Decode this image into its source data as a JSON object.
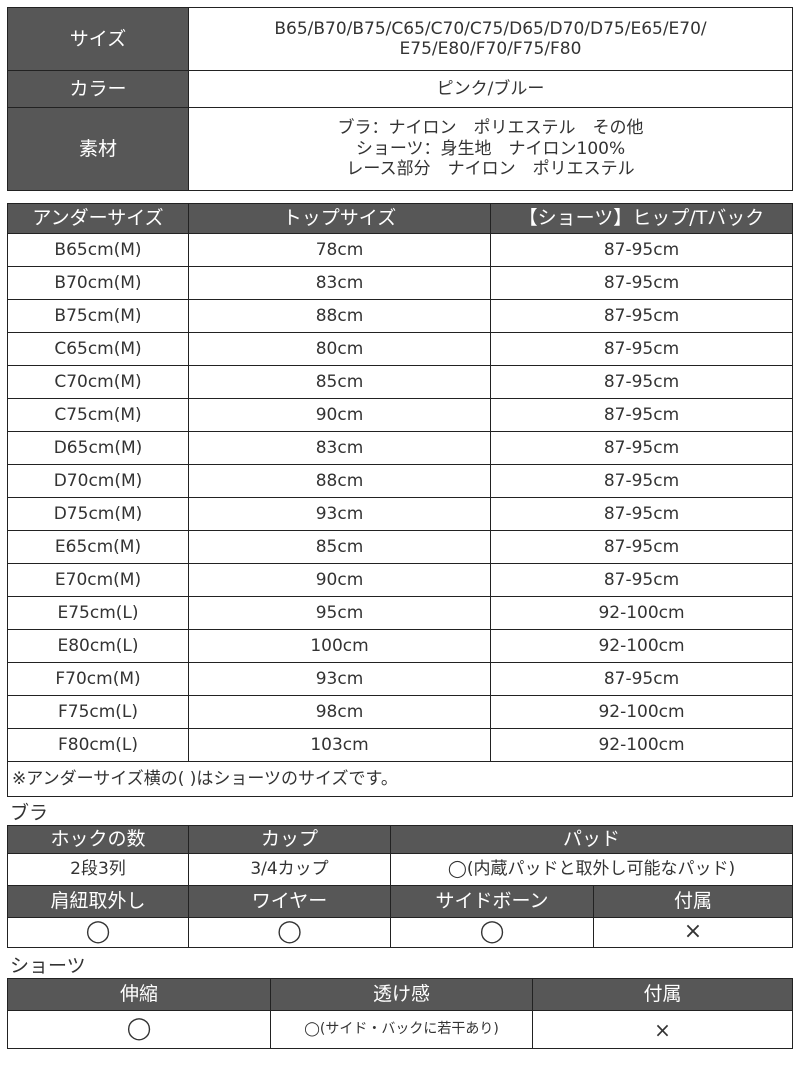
{
  "spec": {
    "size_label": "サイズ",
    "size_line1": "B65/B70/B75/C65/C70/C75/D65/D70/D75/E65/E70/",
    "size_line2": "E75/E80/F70/F75/F80",
    "color_label": "カラー",
    "color_value": "ピンク/ブルー",
    "material_label": "素材",
    "material_line1": "ブラ：ナイロン　ポリエステル　その他",
    "material_line2": "ショーツ：身生地　ナイロン100%",
    "material_line3": "レース部分　ナイロン　ポリエステル"
  },
  "size_table": {
    "headers": [
      "アンダーサイズ",
      "トップサイズ",
      "【ショーツ】ヒップ/Tバック"
    ],
    "rows": [
      [
        "B65cm(M)",
        "78cm",
        "87-95cm"
      ],
      [
        "B70cm(M)",
        "83cm",
        "87-95cm"
      ],
      [
        "B75cm(M)",
        "88cm",
        "87-95cm"
      ],
      [
        "C65cm(M)",
        "80cm",
        "87-95cm"
      ],
      [
        "C70cm(M)",
        "85cm",
        "87-95cm"
      ],
      [
        "C75cm(M)",
        "90cm",
        "87-95cm"
      ],
      [
        "D65cm(M)",
        "83cm",
        "87-95cm"
      ],
      [
        "D70cm(M)",
        "88cm",
        "87-95cm"
      ],
      [
        "D75cm(M)",
        "93cm",
        "87-95cm"
      ],
      [
        "E65cm(M)",
        "85cm",
        "87-95cm"
      ],
      [
        "E70cm(M)",
        "90cm",
        "87-95cm"
      ],
      [
        "E75cm(L)",
        "95cm",
        "92-100cm"
      ],
      [
        "E80cm(L)",
        "100cm",
        "92-100cm"
      ],
      [
        "F70cm(M)",
        "93cm",
        "87-95cm"
      ],
      [
        "F75cm(L)",
        "98cm",
        "92-100cm"
      ],
      [
        "F80cm(L)",
        "103cm",
        "92-100cm"
      ]
    ],
    "note": "※アンダーサイズ横の( )はショーツのサイズです。"
  },
  "bra": {
    "title": "ブラ",
    "headers1": [
      "ホックの数",
      "カップ",
      "パッド"
    ],
    "values1": [
      "2段3列",
      "3/4カップ",
      "◯(内蔵パッドと取外し可能なパッド)"
    ],
    "headers2": [
      "肩紐取外し",
      "ワイヤー",
      "サイドボーン",
      "付属"
    ],
    "values2": [
      "◯",
      "◯",
      "◯",
      "×"
    ]
  },
  "shorts": {
    "title": "ショーツ",
    "headers": [
      "伸縮",
      "透け感",
      "付属"
    ],
    "values": [
      "◯",
      "◯(サイド・バックに若干あり)",
      "×"
    ]
  }
}
